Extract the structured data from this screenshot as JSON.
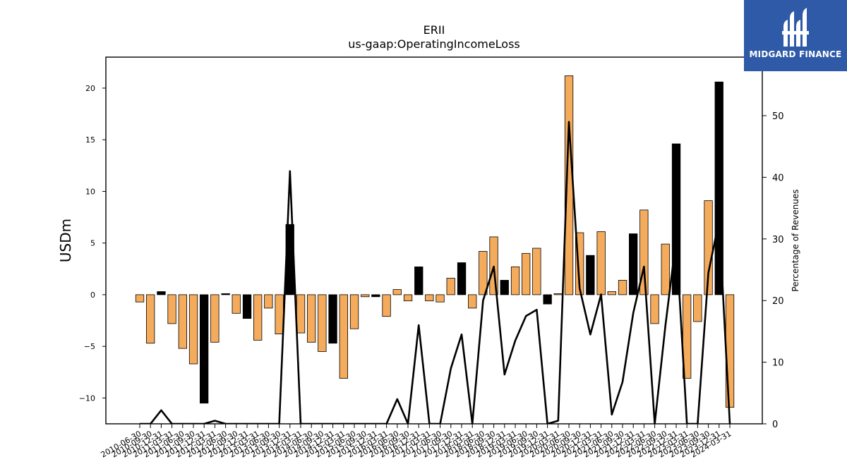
{
  "chart_data": {
    "type": "bar",
    "title": "ERII",
    "subtitle": "us-gaap:OperatingIncomeLoss",
    "ylabel": "USDm",
    "y2label": "Percentage of Revenues",
    "ylim": [
      -12.5,
      23
    ],
    "y2lim": [
      0,
      59.5
    ],
    "yticks": [
      -10,
      -5,
      0,
      5,
      10,
      15,
      20
    ],
    "y2ticks": [
      0,
      10,
      20,
      30,
      40,
      50
    ],
    "ytick_labels": [
      "−10",
      "−5",
      "0",
      "5",
      "10",
      "15",
      "20"
    ],
    "y2tick_labels": [
      "0",
      "10",
      "20",
      "30",
      "40",
      "50"
    ],
    "categories": [
      "2010-06-30",
      "2010-09-30",
      "2010-12-31",
      "2011-03-31",
      "2011-06-30",
      "2011-09-30",
      "2011-12-31",
      "2012-03-31",
      "2012-06-30",
      "2012-09-30",
      "2012-12-31",
      "2013-03-31",
      "2013-06-30",
      "2013-09-30",
      "2013-12-31",
      "2014-03-31",
      "2014-06-30",
      "2014-09-30",
      "2014-12-31",
      "2015-03-31",
      "2015-06-30",
      "2015-09-30",
      "2015-12-31",
      "2016-03-31",
      "2016-06-30",
      "2016-09-30",
      "2016-12-31",
      "2017-03-31",
      "2017-06-30",
      "2017-09-30",
      "2017-12-31",
      "2018-03-31",
      "2018-06-30",
      "2018-09-30",
      "2018-12-31",
      "2019-03-31",
      "2019-06-30",
      "2019-09-30",
      "2019-12-31",
      "2020-03-31",
      "2020-06-30",
      "2020-09-30",
      "2020-12-31",
      "2021-03-31",
      "2021-06-30",
      "2021-09-30",
      "2021-12-31",
      "2022-03-31",
      "2022-06-30",
      "2022-09-30",
      "2022-12-31",
      "2023-03-31",
      "2023-06-30",
      "2023-09-30",
      "2023-12-31",
      "2024-03-31"
    ],
    "series": [
      {
        "kind": "bar",
        "values": [
          -0.7,
          -4.7,
          0.3,
          -2.8,
          -5.2,
          -6.7,
          -10.5,
          -4.6,
          0.1,
          -1.8,
          -2.3,
          -4.4,
          -1.3,
          -3.8,
          6.8,
          -3.7,
          -4.6,
          -5.5,
          -4.7,
          -8.1,
          -3.3,
          -0.2,
          -0.2,
          -2.1,
          0.5,
          -0.6,
          2.7,
          -0.6,
          -0.7,
          1.6,
          3.1,
          -1.3,
          4.2,
          5.6,
          1.4,
          2.7,
          4.0,
          4.5,
          -0.9,
          0.1,
          21.2,
          6.0,
          3.8,
          6.1,
          0.3,
          1.4,
          5.9,
          8.2,
          -2.8,
          4.9,
          14.6,
          -8.1,
          -2.6,
          9.1,
          20.6,
          -10.9
        ],
        "colors": [
          "o",
          "o",
          "k",
          "o",
          "o",
          "o",
          "k",
          "o",
          "k",
          "o",
          "k",
          "o",
          "o",
          "o",
          "k",
          "o",
          "o",
          "o",
          "k",
          "o",
          "o",
          "o",
          "k",
          "o",
          "o",
          "o",
          "k",
          "o",
          "o",
          "o",
          "k",
          "o",
          "o",
          "o",
          "k",
          "o",
          "o",
          "o",
          "k",
          "o",
          "o",
          "o",
          "k",
          "o",
          "o",
          "o",
          "k",
          "o",
          "o",
          "o",
          "k",
          "o",
          "o",
          "o",
          "k",
          "o"
        ]
      },
      {
        "kind": "line",
        "values": [
          0,
          0,
          2.2,
          0,
          0,
          0,
          0,
          0.5,
          0,
          0,
          0,
          0,
          0,
          0,
          41,
          0,
          0,
          0,
          0,
          0,
          0,
          0,
          0,
          0,
          4,
          0,
          16,
          0,
          0,
          9,
          14.5,
          0,
          20,
          25.5,
          8,
          13.5,
          17.5,
          18.5,
          0,
          0.5,
          49,
          22,
          14.5,
          21,
          1.5,
          6.8,
          18,
          25.5,
          0,
          16,
          30,
          0,
          0,
          24.5,
          33,
          0
        ]
      }
    ],
    "colors": {
      "positive_bar": "#f5ab5c",
      "annual_bar": "#000000",
      "line": "#000000",
      "axis": "#000000"
    }
  },
  "logo": {
    "text": "MIDGARD FINANCE",
    "background": "#2f5aa8"
  }
}
